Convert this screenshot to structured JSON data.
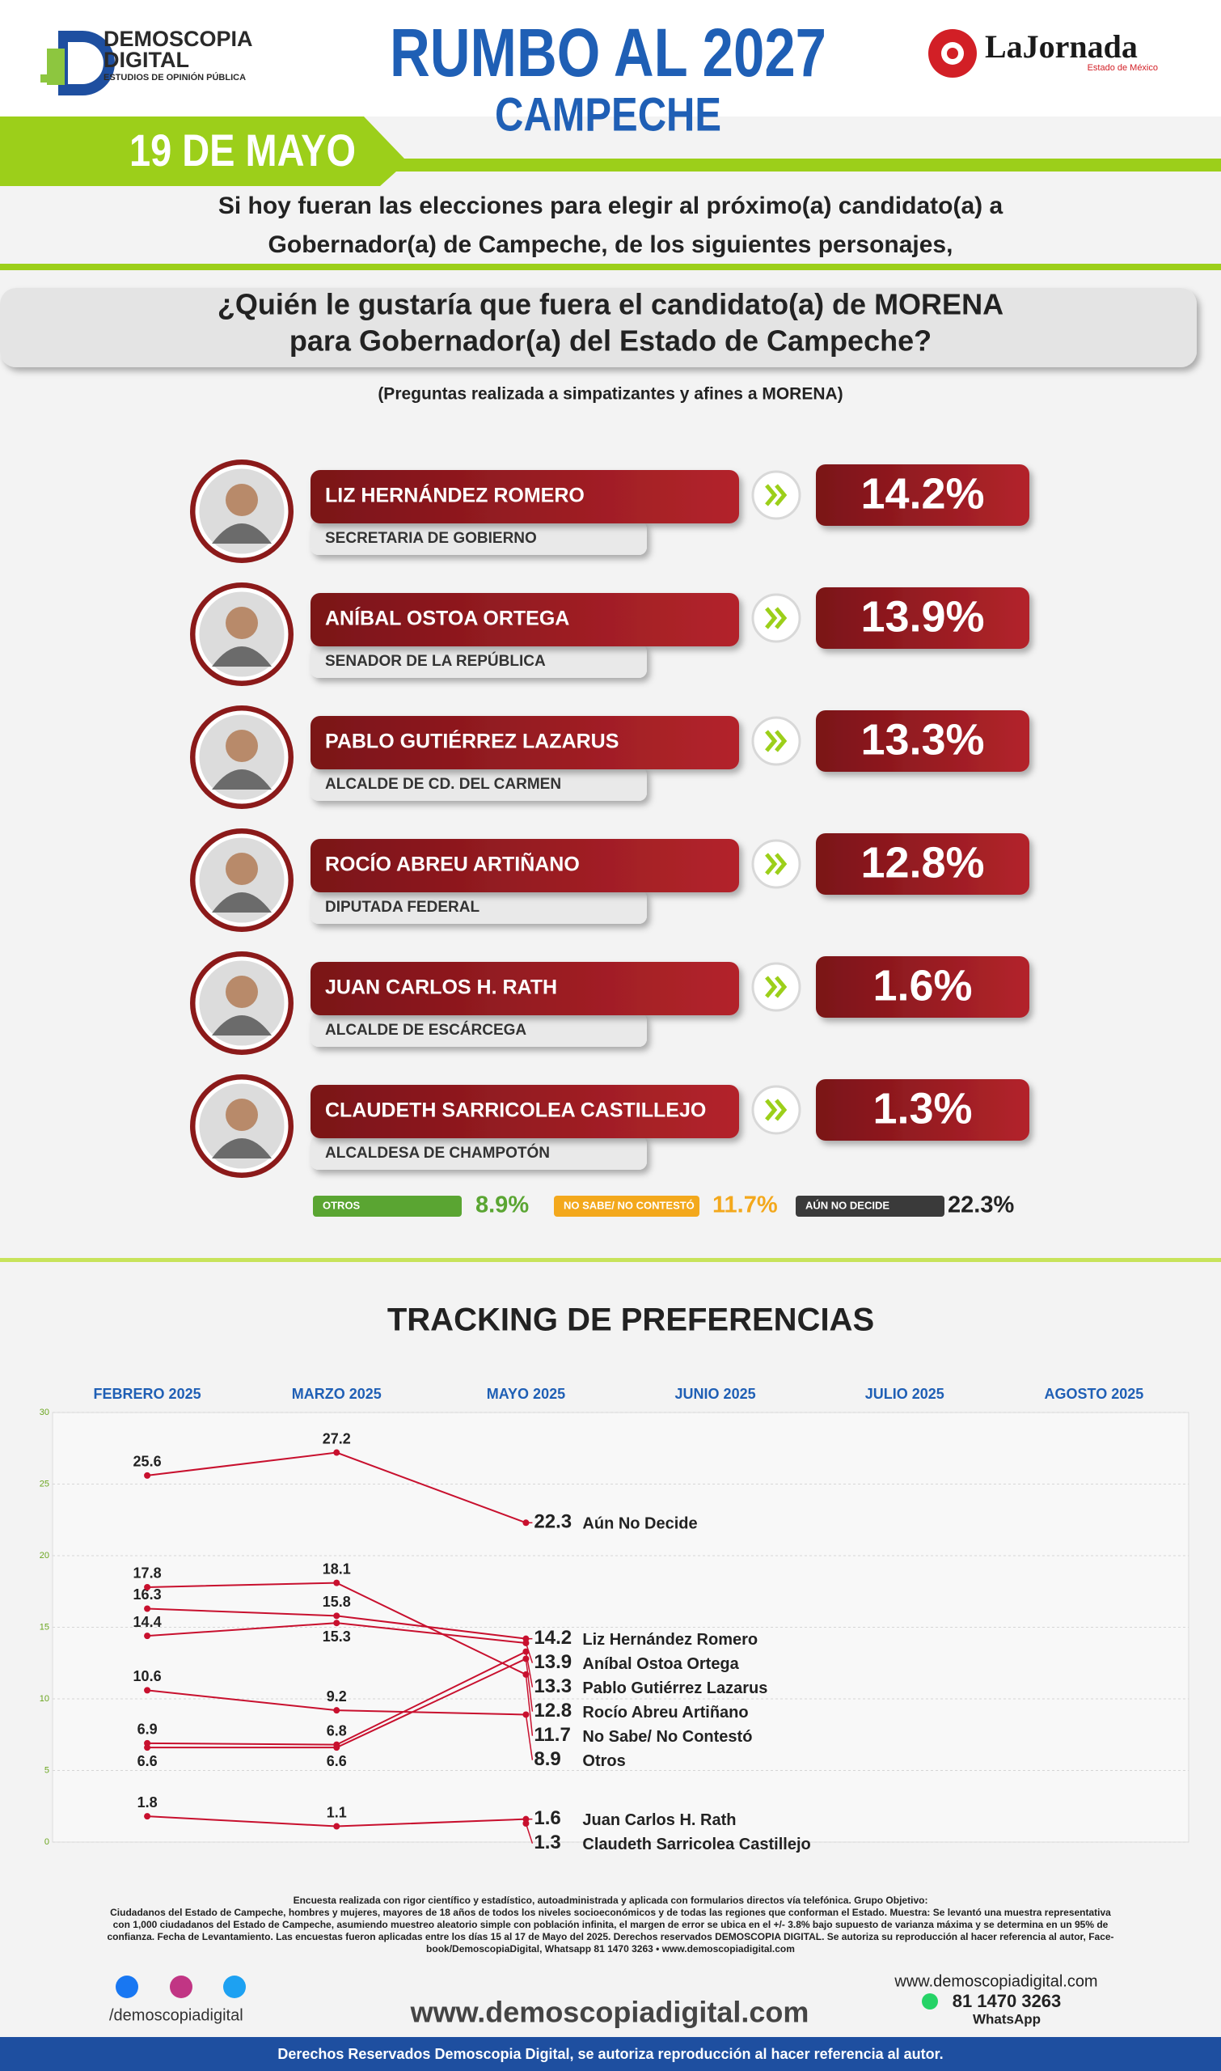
{
  "header": {
    "logo_name": "DEMOSCOPIA",
    "logo_name2": "DIGITAL",
    "logo_tagline": "ESTUDIOS DE OPINIÓN PÚBLICA",
    "title": "RUMBO AL 2027",
    "subtitle": "CAMPECHE",
    "partner": "LaJornada",
    "partner_tagline": "Estado de México",
    "date": "19 DE MAYO"
  },
  "intro": [
    "Si hoy fueran las elecciones para elegir al próximo(a) candidato(a) a",
    "Gobernador(a) de Campeche, de los siguientes personajes,"
  ],
  "question": [
    "¿Quién le gustaría que fuera el candidato(a) de MORENA",
    "para Gobernador(a) del Estado de Campeche?"
  ],
  "note": "(Preguntas realizada a simpatizantes y afines a MORENA)",
  "candidates": [
    {
      "name": "LIZ HERNÁNDEZ ROMERO",
      "role": "SECRETARIA DE GOBIERNO",
      "percent": "14.2%"
    },
    {
      "name": "ANÍBAL OSTOA ORTEGA",
      "role": "SENADOR DE LA REPÚBLICA",
      "percent": "13.9%"
    },
    {
      "name": "PABLO GUTIÉRREZ LAZARUS",
      "role": "ALCALDE DE CD. DEL CARMEN",
      "percent": "13.3%"
    },
    {
      "name": "ROCÍO ABREU ARTIÑANO",
      "role": "DIPUTADA FEDERAL",
      "percent": "12.8%"
    },
    {
      "name": "JUAN CARLOS H. RATH",
      "role": "ALCALDE DE ESCÁRCEGA",
      "percent": "1.6%"
    },
    {
      "name": "CLAUDETH SARRICOLEA CASTILLEJO",
      "role": "ALCALDESA DE CHAMPOTÓN",
      "percent": "1.3%"
    }
  ],
  "others": [
    {
      "label": "OTROS",
      "percent": "8.9%",
      "color": "#5aa532"
    },
    {
      "label": "NO SABE/ NO CONTESTÓ",
      "percent": "11.7%",
      "color": "#f3a81c"
    },
    {
      "label": "AÚN NO DECIDE",
      "percent": "22.3%",
      "color": "#3a3a3a"
    }
  ],
  "chart_data": {
    "type": "line",
    "title": "TRACKING DE PREFERENCIAS",
    "categories": [
      "FEBRERO 2025",
      "MARZO 2025",
      "MAYO 2025",
      "JUNIO 2025",
      "JULIO 2025",
      "AGOSTO 2025"
    ],
    "ylim": [
      0,
      30
    ],
    "yticks": [
      0,
      5,
      10,
      15,
      20,
      25,
      30
    ],
    "grid": true,
    "series": [
      {
        "name": "Aún No Decide",
        "color": "#c8102e",
        "values": [
          25.6,
          27.2,
          22.3,
          null,
          null,
          null
        ]
      },
      {
        "name": "Liz Hernández Romero",
        "color": "#c8102e",
        "values": [
          16.3,
          15.8,
          14.2,
          null,
          null,
          null
        ]
      },
      {
        "name": "Aníbal Ostoa Ortega",
        "color": "#c8102e",
        "values": [
          14.4,
          15.3,
          13.9,
          null,
          null,
          null
        ]
      },
      {
        "name": "Pablo Gutiérrez Lazarus",
        "color": "#c8102e",
        "values": [
          6.9,
          6.8,
          13.3,
          null,
          null,
          null
        ]
      },
      {
        "name": "Rocío Abreu Artiñano",
        "color": "#c8102e",
        "values": [
          6.6,
          6.6,
          12.8,
          null,
          null,
          null
        ]
      },
      {
        "name": "No Sabe/ No Contestó",
        "color": "#c8102e",
        "values": [
          17.8,
          18.1,
          11.7,
          null,
          null,
          null
        ]
      },
      {
        "name": "Otros",
        "color": "#c8102e",
        "values": [
          10.6,
          9.2,
          8.9,
          null,
          null,
          null
        ]
      },
      {
        "name": "Juan Carlos H. Rath",
        "color": "#c8102e",
        "values": [
          1.8,
          1.1,
          1.6,
          null,
          null,
          null
        ]
      },
      {
        "name": "Claudeth Sarricolea Castillejo",
        "color": "#c8102e",
        "values": [
          null,
          null,
          1.3,
          null,
          null,
          null
        ]
      }
    ]
  },
  "footer": {
    "methodology": [
      "Encuesta realizada con rigor científico y estadístico, autoadministrada y aplicada con formularios directos vía telefónica. Grupo Objetivo:",
      "Ciudadanos del Estado de Campeche, hombres y mujeres, mayores de 18 años de todos los niveles socioeconómicos y de todas las regiones que conforman el Estado. Muestra: Se levantó una muestra representativa",
      "con 1,000 ciudadanos del Estado de Campeche, asumiendo muestreo aleatorio simple con población infinita, el margen de error se ubica en el +/- 3.8% bajo supuesto de varianza máxima y se determina en un 95% de",
      "confianza. Fecha de Levantamiento. Las encuestas fueron aplicadas entre los días 15 al 17 de Mayo del 2025. Derechos reservados DEMOSCOPIA DIGITAL. Se autoriza su reproducción al hacer referencia al autor, Face-",
      "book/DemoscopiaDigital, Whatsapp 81 1470 3263 • www.demoscopiadigital.com"
    ],
    "social": "/demoscopiadigital",
    "website": "www.demoscopiadigital.com",
    "contact_web": "www.demoscopiadigital.com",
    "phone": "81 1470 3263",
    "phone_label": "WhatsApp",
    "rights": "Derechos Reservados Demoscopia Digital, se autoriza reproducción al hacer referencia al autor."
  }
}
